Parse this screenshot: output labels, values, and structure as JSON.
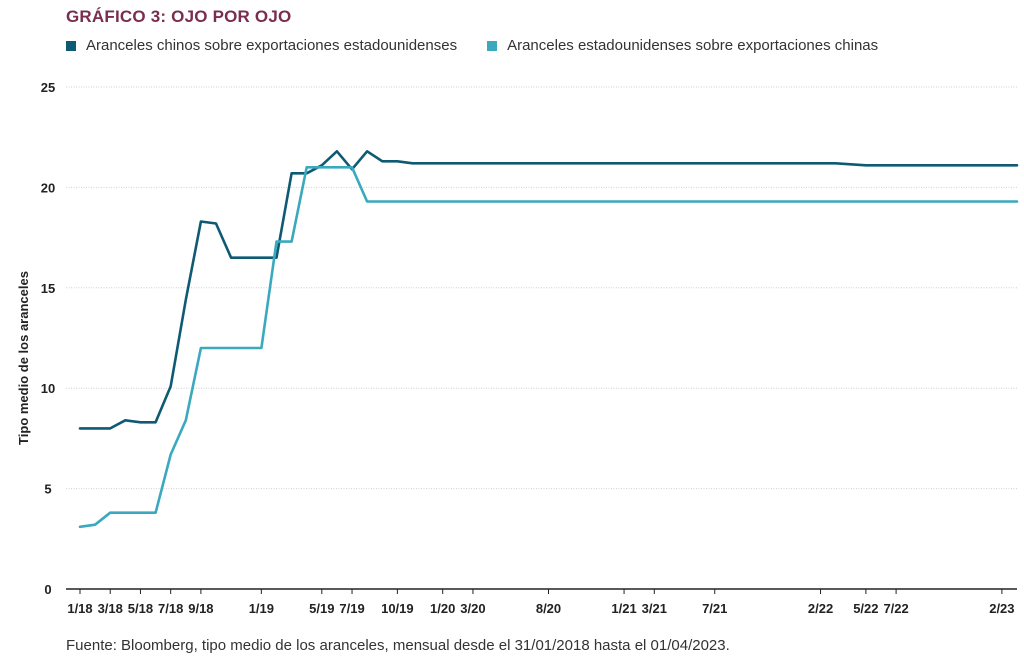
{
  "title": "GRÁFICO 3: OJO POR OJO",
  "source": "Fuente: Bloomberg, tipo medio de los aranceles, mensual desde el 31/01/2018 hasta el 01/04/2023.",
  "chart_data": {
    "type": "line",
    "title": "GRÁFICO 3: OJO POR OJO",
    "xlabel": "",
    "ylabel": "Tipo medio de los aranceles",
    "ylim": [
      0,
      25
    ],
    "yticks": [
      "0",
      "5",
      "10",
      "15",
      "20",
      "25"
    ],
    "xlim": [
      0,
      62
    ],
    "xticks": [
      {
        "x": 0,
        "label": "1/18"
      },
      {
        "x": 2,
        "label": "3/18"
      },
      {
        "x": 4,
        "label": "5/18"
      },
      {
        "x": 6,
        "label": "7/18"
      },
      {
        "x": 8,
        "label": "9/18"
      },
      {
        "x": 12,
        "label": "1/19"
      },
      {
        "x": 16,
        "label": "5/19"
      },
      {
        "x": 18,
        "label": "7/19"
      },
      {
        "x": 21,
        "label": "10/19"
      },
      {
        "x": 24,
        "label": "1/20"
      },
      {
        "x": 26,
        "label": "3/20"
      },
      {
        "x": 31,
        "label": "8/20"
      },
      {
        "x": 36,
        "label": "1/21"
      },
      {
        "x": 38,
        "label": "3/21"
      },
      {
        "x": 42,
        "label": "7/21"
      },
      {
        "x": 49,
        "label": "2/22"
      },
      {
        "x": 52,
        "label": "5/22"
      },
      {
        "x": 54,
        "label": "7/22"
      },
      {
        "x": 61,
        "label": "2/23"
      }
    ],
    "series": [
      {
        "name": "Aranceles chinos sobre exportaciones estadounidenses",
        "color": "#0f5a73",
        "points": [
          [
            0,
            8.0
          ],
          [
            1,
            8.0
          ],
          [
            2,
            8.0
          ],
          [
            3,
            8.4
          ],
          [
            4,
            8.3
          ],
          [
            5,
            8.3
          ],
          [
            6,
            10.1
          ],
          [
            7,
            14.4
          ],
          [
            8,
            18.3
          ],
          [
            9,
            18.2
          ],
          [
            10,
            16.5
          ],
          [
            11,
            16.5
          ],
          [
            12,
            16.5
          ],
          [
            13,
            16.5
          ],
          [
            14,
            20.7
          ],
          [
            15,
            20.7
          ],
          [
            16,
            21.1
          ],
          [
            17,
            21.8
          ],
          [
            18,
            20.9
          ],
          [
            19,
            21.8
          ],
          [
            20,
            21.3
          ],
          [
            21,
            21.3
          ],
          [
            22,
            21.2
          ],
          [
            26,
            21.2
          ],
          [
            30,
            21.2
          ],
          [
            35,
            21.2
          ],
          [
            40,
            21.2
          ],
          [
            45,
            21.2
          ],
          [
            50,
            21.2
          ],
          [
            52,
            21.1
          ],
          [
            55,
            21.1
          ],
          [
            58,
            21.1
          ],
          [
            61,
            21.1
          ],
          [
            62,
            21.1
          ]
        ]
      },
      {
        "name": "Aranceles estadounidenses sobre exportaciones chinas",
        "color": "#3aa9bd",
        "points": [
          [
            0,
            3.1
          ],
          [
            1,
            3.2
          ],
          [
            2,
            3.8
          ],
          [
            3,
            3.8
          ],
          [
            4,
            3.8
          ],
          [
            5,
            3.8
          ],
          [
            6,
            6.7
          ],
          [
            7,
            8.4
          ],
          [
            8,
            12.0
          ],
          [
            9,
            12.0
          ],
          [
            10,
            12.0
          ],
          [
            11,
            12.0
          ],
          [
            12,
            12.0
          ],
          [
            13,
            17.3
          ],
          [
            14,
            17.3
          ],
          [
            15,
            21.0
          ],
          [
            16,
            21.0
          ],
          [
            17,
            21.0
          ],
          [
            18,
            21.0
          ],
          [
            19,
            19.3
          ],
          [
            25,
            19.3
          ],
          [
            30,
            19.3
          ],
          [
            35,
            19.3
          ],
          [
            40,
            19.3
          ],
          [
            45,
            19.3
          ],
          [
            50,
            19.3
          ],
          [
            55,
            19.3
          ],
          [
            60,
            19.3
          ],
          [
            62,
            19.3
          ]
        ]
      }
    ]
  }
}
